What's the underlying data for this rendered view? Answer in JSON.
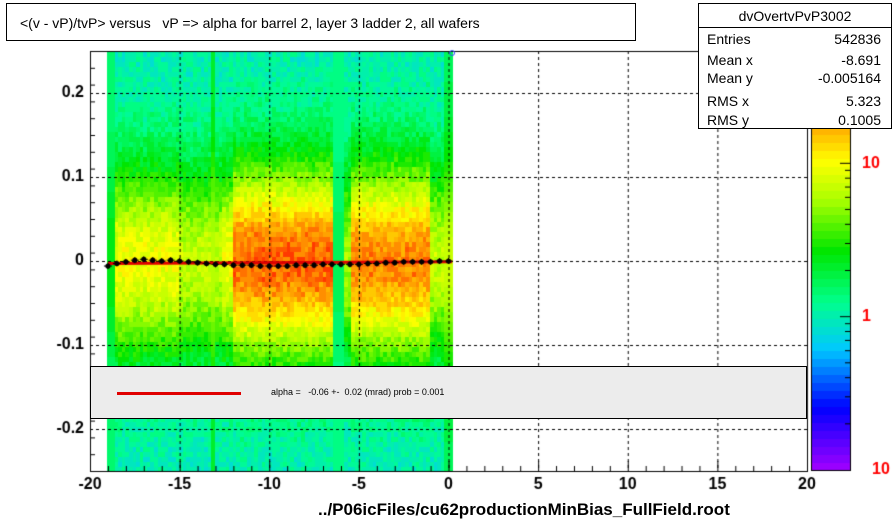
{
  "title": "<(v - vP)/tvP> versus   vP => alpha for barrel 2, layer 3 ladder 2, all wafers",
  "stats": {
    "name": "dvOvertvPvP3002",
    "rows": [
      {
        "label": "Entries",
        "value": "542836"
      },
      {
        "label": "Mean x",
        "value": "-8.691"
      },
      {
        "label": "Mean y",
        "value": "-0.005164"
      },
      {
        "label": "RMS x",
        "value": "5.323"
      },
      {
        "label": "RMS y",
        "value": "0.1005"
      }
    ]
  },
  "fit": {
    "text": "alpha =   -0.06 +-  0.02 (mrad) prob = 0.001",
    "color": "#e00000"
  },
  "footer": "../P06icFiles/cu62productionMinBias_FullField.root",
  "chart_data": {
    "type": "heatmap",
    "title": "<(v - vP)/tvP> versus   vP => alpha for barrel 2, layer 3 ladder 2, all wafers",
    "xlim": [
      -20,
      20
    ],
    "ylim": [
      -0.25,
      0.25
    ],
    "x_ticks": [
      -20,
      -15,
      -10,
      -5,
      0,
      5,
      10,
      15,
      20
    ],
    "y_ticks": [
      -0.2,
      -0.1,
      0,
      0.1,
      0.2
    ],
    "x_tick_labels": [
      "-20",
      "-15",
      "-10",
      "-5",
      "0",
      "5",
      "10",
      "15",
      "20"
    ],
    "y_tick_labels": [
      "-0.2",
      "-0.1",
      "0",
      "0.1",
      "0.2"
    ],
    "colorbar": {
      "scale": "log",
      "tick_labels": [
        "1",
        "10"
      ],
      "bottom_label": "10",
      "range": [
        0.1,
        40
      ]
    },
    "filled_x_range": [
      -19,
      0.2
    ],
    "grid": true,
    "profile": {
      "x": [
        -19.0,
        -18.5,
        -18.0,
        -17.5,
        -17.0,
        -16.5,
        -16.0,
        -15.5,
        -15.0,
        -14.5,
        -14.0,
        -13.5,
        -13.0,
        -12.5,
        -12.0,
        -11.5,
        -11.0,
        -10.5,
        -10.0,
        -9.5,
        -9.0,
        -8.5,
        -8.0,
        -7.5,
        -7.0,
        -6.5,
        -6.0,
        -5.5,
        -5.0,
        -4.5,
        -4.0,
        -3.5,
        -3.0,
        -2.5,
        -2.0,
        -1.5,
        -1.0,
        -0.5,
        0.0
      ],
      "y": [
        -0.006,
        -0.003,
        -0.001,
        0.001,
        0.002,
        0.001,
        0.0,
        0.001,
        0.0,
        -0.001,
        -0.002,
        -0.003,
        -0.004,
        -0.004,
        -0.005,
        -0.005,
        -0.005,
        -0.006,
        -0.006,
        -0.006,
        -0.006,
        -0.005,
        -0.005,
        -0.005,
        -0.004,
        -0.004,
        -0.004,
        -0.004,
        -0.004,
        -0.003,
        -0.003,
        -0.002,
        -0.002,
        -0.001,
        -0.001,
        -0.001,
        -0.001,
        0.0,
        0.0
      ]
    },
    "fit_line": {
      "x": [
        -19,
        0.2
      ],
      "y": [
        -0.003,
        -0.001
      ]
    }
  }
}
